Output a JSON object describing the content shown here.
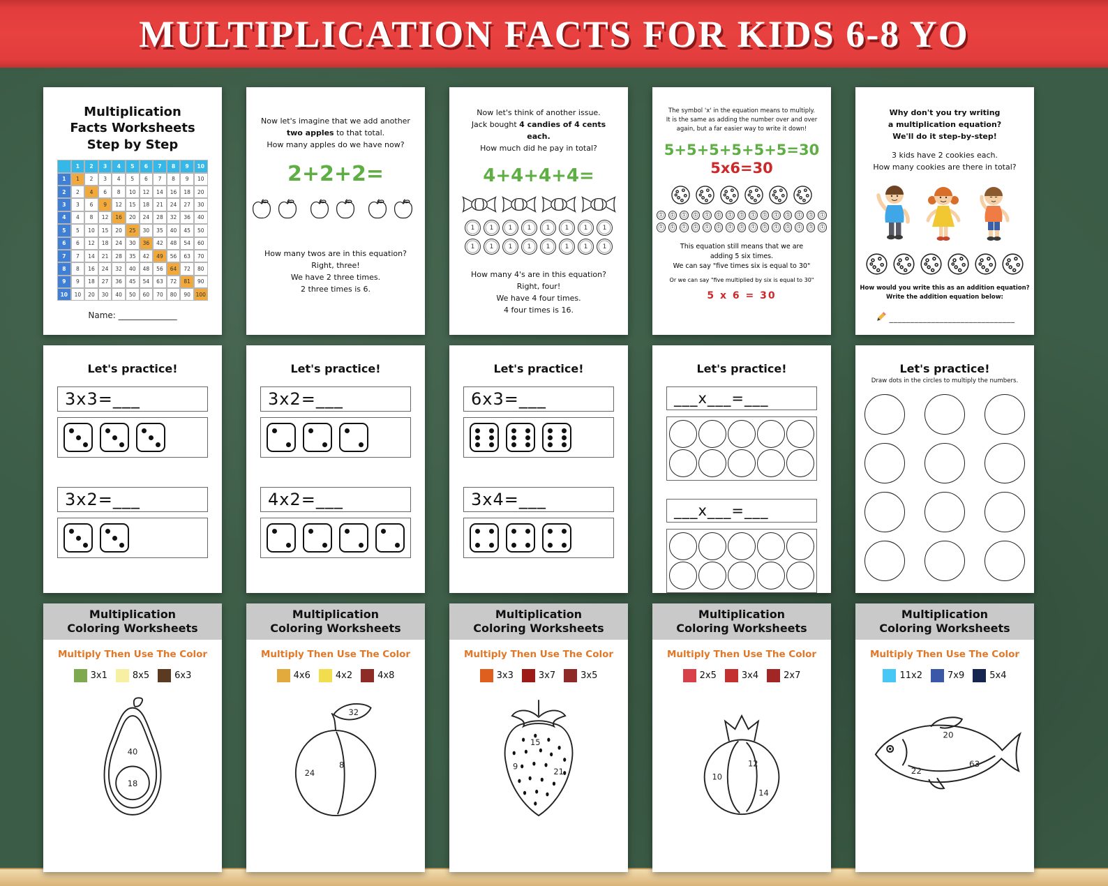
{
  "banner": {
    "title": "MULTIPLICATION FACTS FOR KIDS 6-8 YO",
    "bg_color": "#e23d3d",
    "text_color": "#ffffff"
  },
  "step_pages": {
    "p1": {
      "title_l1": "Multiplication",
      "title_l2": "Facts Worksheets",
      "title_l3": "Step by Step",
      "table": {
        "size": 10,
        "header_color": "#35b8e8",
        "left_color": "#3f7fd6",
        "diag_color": "#f2a93b"
      },
      "name_label": "Name: ______________"
    },
    "p2": {
      "intro_l1": "Now let's imagine that we add another",
      "intro_l2a": "two apples",
      "intro_l2b": " to that total.",
      "intro_l3": "How many apples do we have now?",
      "equation": "2+2+2=",
      "equation_color": "#5fae44",
      "apple_count": 6,
      "outro_l1": "How many twos are in this equation?",
      "outro_l2": "Right, three!",
      "outro_l3": "We have 2 three times.",
      "outro_l4": "2 three times is 6."
    },
    "p3": {
      "intro_l1": "Now let's think of another issue.",
      "intro_l2a": "Jack bought ",
      "intro_l2b": "4 candies of 4 cents",
      "intro_l3": "each.",
      "intro_l4": "How much did he pay in total?",
      "equation": "4+4+4+4=",
      "equation_color": "#5fae44",
      "candy_count": 4,
      "coins": {
        "coin_rows": 2,
        "coins_per_row": 8,
        "coin_label": "1"
      },
      "outro_l1": "How many 4's are in this equation?",
      "outro_l2": "Right, four!",
      "outro_l3": "We have 4 four times.",
      "outro_l4": "4 four times is 16."
    },
    "p4": {
      "intro_l1": "The symbol 'x' in the equation means to multiply.",
      "intro_l2": "It is the same as adding the number over and over",
      "intro_l3": "again, but a far easier way to write it down!",
      "equation_add": "5+5+5+5+5+5=30",
      "equation_add_color": "#5fae44",
      "equation_mul": "5x6=30",
      "equation_mul_color": "#cc2a2a",
      "cookie_count": 6,
      "coins": {
        "coin_rows": 2,
        "coins_per_row": 15,
        "coin_label": "1"
      },
      "mid_l1": "This equation still means that we are",
      "mid_l2": "adding 5 six times.",
      "mid_l3": "We can say \"five times six is equal to 30\"",
      "mid_l4": "Or we can say \"five multiplied by six is equal to 30\"",
      "final_equation": "5 x 6 = 30",
      "final_equation_color": "#cc2a2a"
    },
    "p5": {
      "intro_l1": "Why don't you try writing",
      "intro_l2": "a multiplication equation?",
      "intro_l3": "We'll do it step-by-step!",
      "problem_l1": "3 kids have 2 cookies each.",
      "problem_l2": "How many cookies are there in total?",
      "cookie_count": 6,
      "outro_l1": "How would you write this as an addition equation?",
      "outro_l2": "Write the addition equation below:",
      "answer_line": "______________________________"
    }
  },
  "practice_pages": [
    {
      "title": "Let's practice!",
      "sections": [
        {
          "equation": "3x3=___",
          "dice": 3,
          "pips": 3
        },
        {
          "equation": "3x2=___",
          "dice": 2,
          "pips": 3
        }
      ]
    },
    {
      "title": "Let's practice!",
      "sections": [
        {
          "equation": "3x2=___",
          "dice": 3,
          "pips": 2
        },
        {
          "equation": "4x2=___",
          "dice": 4,
          "pips": 2
        }
      ]
    },
    {
      "title": "Let's practice!",
      "sections": [
        {
          "equation": "6x3=___",
          "dice": 3,
          "pips": 6
        },
        {
          "equation": "3x4=___",
          "dice": 3,
          "pips": 4
        }
      ]
    },
    {
      "title": "Let's practice!",
      "sections": [
        {
          "equation": "___x___=___",
          "circle_rows": 2,
          "circle_cols": 5
        },
        {
          "equation": "___x___=___",
          "circle_rows": 2,
          "circle_cols": 5
        }
      ]
    },
    {
      "title": "Let's practice!",
      "subtitle": "Draw dots in the circles to multiply the numbers.",
      "big_circle_rows": 4,
      "big_circle_cols": 3
    }
  ],
  "coloring_pages": [
    {
      "header_l1": "Multiplication",
      "header_l2": "Coloring Worksheets",
      "instruction": "Multiply Then Use The Color",
      "instruction_color": "#e0782a",
      "key": [
        {
          "color": "#7ea94e",
          "label": "3x1"
        },
        {
          "color": "#f7f0a2",
          "label": "8x5"
        },
        {
          "color": "#5b3a21",
          "label": "6x3"
        }
      ],
      "figure": "avocado",
      "numbers": {
        "n1": "40",
        "n2": "18"
      }
    },
    {
      "header_l1": "Multiplication",
      "header_l2": "Coloring Worksheets",
      "instruction": "Multiply Then Use The Color",
      "instruction_color": "#e0782a",
      "key": [
        {
          "color": "#e2a93c",
          "label": "4x6"
        },
        {
          "color": "#f2dd4e",
          "label": "4x2"
        },
        {
          "color": "#8e2b24",
          "label": "4x8"
        }
      ],
      "figure": "lemon",
      "numbers": {
        "n1": "32",
        "n2": "24",
        "n3": "8"
      }
    },
    {
      "header_l1": "Multiplication",
      "header_l2": "Coloring Worksheets",
      "instruction": "Multiply Then Use The Color",
      "instruction_color": "#e0782a",
      "key": [
        {
          "color": "#df5f1f",
          "label": "3x3"
        },
        {
          "color": "#9e1a16",
          "label": "3x7"
        },
        {
          "color": "#8e2b28",
          "label": "3x5"
        }
      ],
      "figure": "strawberry",
      "numbers": {
        "n1": "15",
        "n2": "9",
        "n3": "21"
      }
    },
    {
      "header_l1": "Multiplication",
      "header_l2": "Coloring Worksheets",
      "instruction": "Multiply Then Use The Color",
      "instruction_color": "#e0782a",
      "key": [
        {
          "color": "#d8404a",
          "label": "2x5"
        },
        {
          "color": "#c42f2f",
          "label": "3x4"
        },
        {
          "color": "#a32626",
          "label": "2x7"
        }
      ],
      "figure": "pomegranate",
      "numbers": {
        "n1": "10",
        "n2": "12",
        "n3": "14"
      }
    },
    {
      "header_l1": "Multiplication",
      "header_l2": "Coloring Worksheets",
      "instruction": "Multiply Then Use The Color",
      "instruction_color": "#e0782a",
      "key": [
        {
          "color": "#45c8f5",
          "label": "11x2"
        },
        {
          "color": "#3a57a8",
          "label": "7x9"
        },
        {
          "color": "#16254f",
          "label": "5x4"
        }
      ],
      "figure": "fish",
      "numbers": {
        "n1": "20",
        "n2": "63",
        "n3": "22"
      }
    }
  ]
}
